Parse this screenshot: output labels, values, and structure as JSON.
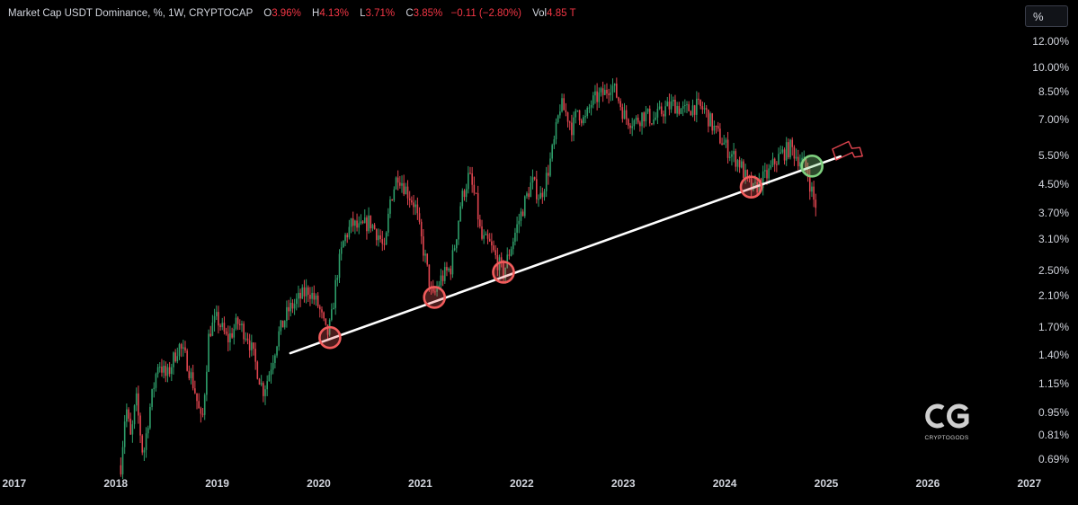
{
  "legend": {
    "title": "Market Cap USDT Dominance, %, 1W, CRYPTOCAP",
    "open_label": "O",
    "open": "3.96%",
    "high_label": "H",
    "high": "4.13%",
    "low_label": "L",
    "low": "3.71%",
    "close_label": "C",
    "close": "3.85%",
    "change": "−0.11 (−2.80%)",
    "vol_label": "Vol",
    "vol": "4.85 T"
  },
  "scale_button": "%",
  "logo": {
    "name": "CRYPTOGODS",
    "mark": "CG"
  },
  "colors": {
    "up": "#2e9e6a",
    "down": "#e0454f",
    "background": "#000000",
    "trendline": "#ffffff",
    "circle_red": "#f25c5c",
    "circle_green": "#7fd17f",
    "text": "#d1d4dc"
  },
  "chart_data": {
    "type": "candlestick",
    "title": "Market Cap USDT Dominance, %, 1W, CRYPTOCAP",
    "y_scale": "log",
    "ylim": [
      0.62,
      13.2
    ],
    "xlim": [
      2016.86,
      2027.48
    ],
    "y_ticks": [
      "12.00%",
      "10.00%",
      "8.50%",
      "7.00%",
      "5.50%",
      "4.50%",
      "3.70%",
      "3.10%",
      "2.50%",
      "2.10%",
      "1.70%",
      "1.40%",
      "1.15%",
      "0.95%",
      "0.81%",
      "0.69%"
    ],
    "x_ticks": [
      "2017",
      "2018",
      "2019",
      "2020",
      "2021",
      "2022",
      "2023",
      "2024",
      "2025",
      "2026",
      "2027"
    ],
    "price_path": [
      [
        2018.05,
        0.66
      ],
      [
        2018.1,
        1.0
      ],
      [
        2018.15,
        0.78
      ],
      [
        2018.2,
        1.05
      ],
      [
        2018.27,
        0.7
      ],
      [
        2018.33,
        0.95
      ],
      [
        2018.42,
        1.35
      ],
      [
        2018.5,
        1.2
      ],
      [
        2018.62,
        1.5
      ],
      [
        2018.7,
        1.35
      ],
      [
        2018.78,
        1.1
      ],
      [
        2018.85,
        0.86
      ],
      [
        2018.92,
        1.65
      ],
      [
        2019.0,
        1.8
      ],
      [
        2019.1,
        1.55
      ],
      [
        2019.2,
        1.75
      ],
      [
        2019.3,
        1.6
      ],
      [
        2019.4,
        1.25
      ],
      [
        2019.45,
        1.1
      ],
      [
        2019.5,
        1.2
      ],
      [
        2019.6,
        1.6
      ],
      [
        2019.7,
        1.9
      ],
      [
        2019.8,
        2.05
      ],
      [
        2019.9,
        2.2
      ],
      [
        2020.0,
        1.95
      ],
      [
        2020.08,
        1.6
      ],
      [
        2020.12,
        1.75
      ],
      [
        2020.18,
        2.45
      ],
      [
        2020.25,
        3.1
      ],
      [
        2020.33,
        3.45
      ],
      [
        2020.4,
        3.3
      ],
      [
        2020.5,
        3.5
      ],
      [
        2020.6,
        3.15
      ],
      [
        2020.65,
        2.8
      ],
      [
        2020.7,
        4.0
      ],
      [
        2020.78,
        4.85
      ],
      [
        2020.85,
        4.4
      ],
      [
        2020.95,
        3.9
      ],
      [
        2021.0,
        3.2
      ],
      [
        2021.05,
        2.7
      ],
      [
        2021.12,
        2.05
      ],
      [
        2021.2,
        2.35
      ],
      [
        2021.3,
        2.55
      ],
      [
        2021.35,
        3.1
      ],
      [
        2021.4,
        4.0
      ],
      [
        2021.48,
        4.8
      ],
      [
        2021.55,
        4.0
      ],
      [
        2021.6,
        3.1
      ],
      [
        2021.68,
        3.0
      ],
      [
        2021.75,
        2.7
      ],
      [
        2021.82,
        2.45
      ],
      [
        2021.88,
        2.85
      ],
      [
        2021.95,
        3.35
      ],
      [
        2022.02,
        3.9
      ],
      [
        2022.1,
        4.6
      ],
      [
        2022.18,
        4.1
      ],
      [
        2022.25,
        4.8
      ],
      [
        2022.32,
        6.0
      ],
      [
        2022.38,
        7.8
      ],
      [
        2022.45,
        7.2
      ],
      [
        2022.5,
        6.6
      ],
      [
        2022.55,
        7.5
      ],
      [
        2022.62,
        6.9
      ],
      [
        2022.68,
        7.8
      ],
      [
        2022.75,
        8.2
      ],
      [
        2022.82,
        8.4
      ],
      [
        2022.88,
        9.0
      ],
      [
        2022.95,
        8.1
      ],
      [
        2023.02,
        7.1
      ],
      [
        2023.12,
        6.9
      ],
      [
        2023.2,
        7.3
      ],
      [
        2023.3,
        7.0
      ],
      [
        2023.4,
        7.5
      ],
      [
        2023.5,
        7.8
      ],
      [
        2023.6,
        7.4
      ],
      [
        2023.7,
        7.7
      ],
      [
        2023.8,
        7.5
      ],
      [
        2023.88,
        6.7
      ],
      [
        2023.95,
        6.2
      ],
      [
        2024.05,
        5.6
      ],
      [
        2024.15,
        5.2
      ],
      [
        2024.22,
        4.6
      ],
      [
        2024.28,
        4.3
      ],
      [
        2024.35,
        4.6
      ],
      [
        2024.42,
        4.8
      ],
      [
        2024.5,
        5.3
      ],
      [
        2024.58,
        5.6
      ],
      [
        2024.65,
        5.8
      ],
      [
        2024.72,
        5.4
      ],
      [
        2024.78,
        5.2
      ],
      [
        2024.82,
        4.8
      ],
      [
        2024.85,
        4.4
      ],
      [
        2024.88,
        4.0
      ],
      [
        2024.91,
        3.85
      ]
    ],
    "trendline": {
      "from": [
        2019.72,
        1.42
      ],
      "to": [
        2025.14,
        5.45
      ]
    },
    "circles": [
      {
        "x": 2020.11,
        "y": 1.58,
        "color": "red"
      },
      {
        "x": 2021.14,
        "y": 2.08,
        "color": "red"
      },
      {
        "x": 2021.82,
        "y": 2.47,
        "color": "red"
      },
      {
        "x": 2024.26,
        "y": 4.42,
        "color": "red"
      },
      {
        "x": 2024.86,
        "y": 5.1,
        "color": "green"
      }
    ],
    "last_candle": {
      "open": "3.96%",
      "high": "4.13%",
      "low": "3.71%",
      "close": "3.85%"
    }
  }
}
